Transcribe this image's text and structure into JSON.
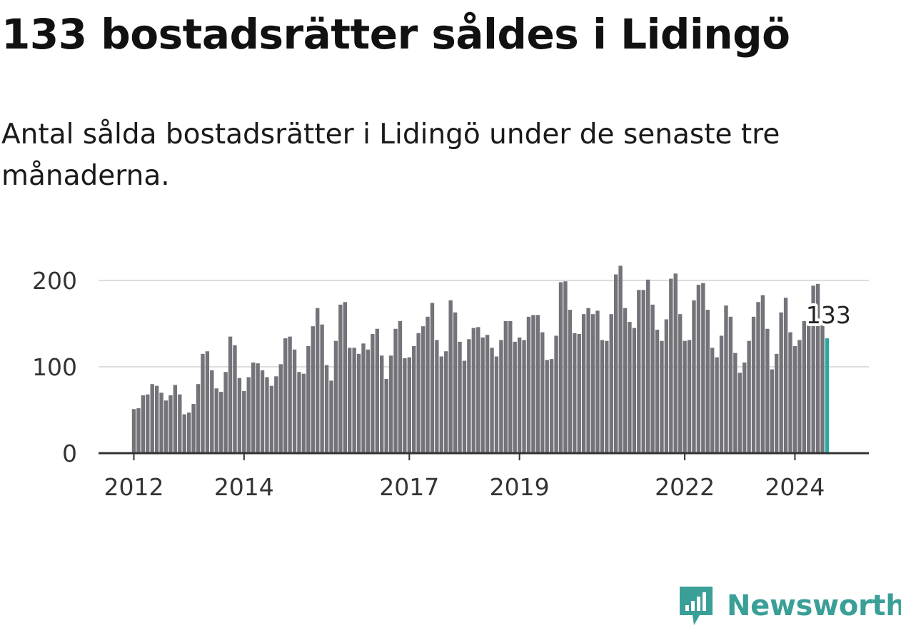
{
  "title": "133 bostadsrätter såldes i Lidingö",
  "subtitle": "Antal sålda bostadsrätter i Lidingö under de senaste tre månaderna.",
  "brand": {
    "name": "Newsworthy",
    "color": "#3a9f97"
  },
  "chart_data": {
    "type": "bar",
    "title": "133 bostadsrätter såldes i Lidingö",
    "subtitle": "Antal sålda bostadsrätter i Lidingö under de senaste tre månaderna.",
    "xlabel": "",
    "ylabel": "",
    "ylim": [
      0,
      200
    ],
    "yticks": [
      0,
      100,
      200
    ],
    "ytick_labels": [
      "0",
      "100",
      "200"
    ],
    "grid": true,
    "x_start": "2012-01",
    "xticks": [
      {
        "label": "2012",
        "index": 0
      },
      {
        "label": "2014",
        "index": 24
      },
      {
        "label": "2017",
        "index": 60
      },
      {
        "label": "2019",
        "index": 84
      },
      {
        "label": "2022",
        "index": 120
      },
      {
        "label": "2024",
        "index": 144
      }
    ],
    "bar_color": "#74737a",
    "highlight_color": "#2aa9a0",
    "highlight_label": "133",
    "values": [
      51,
      52,
      67,
      68,
      80,
      78,
      70,
      61,
      67,
      79,
      68,
      45,
      47,
      57,
      80,
      115,
      118,
      96,
      75,
      71,
      94,
      135,
      125,
      87,
      72,
      88,
      105,
      104,
      96,
      88,
      78,
      89,
      103,
      133,
      135,
      120,
      94,
      92,
      124,
      147,
      168,
      149,
      102,
      84,
      130,
      172,
      175,
      122,
      122,
      115,
      127,
      120,
      138,
      144,
      113,
      86,
      113,
      144,
      153,
      110,
      111,
      124,
      139,
      147,
      158,
      174,
      131,
      112,
      118,
      177,
      163,
      129,
      107,
      132,
      145,
      146,
      134,
      137,
      122,
      112,
      131,
      153,
      153,
      129,
      134,
      131,
      158,
      160,
      160,
      140,
      108,
      109,
      136,
      198,
      199,
      166,
      139,
      138,
      161,
      168,
      161,
      165,
      131,
      130,
      161,
      207,
      217,
      168,
      152,
      145,
      189,
      189,
      201,
      172,
      143,
      130,
      155,
      202,
      208,
      161,
      130,
      131,
      177,
      195,
      197,
      166,
      122,
      111,
      136,
      171,
      158,
      116,
      93,
      105,
      130,
      158,
      175,
      183,
      144,
      97,
      115,
      163,
      180,
      140,
      124,
      131,
      153,
      150,
      194,
      196,
      150,
      133
    ]
  }
}
